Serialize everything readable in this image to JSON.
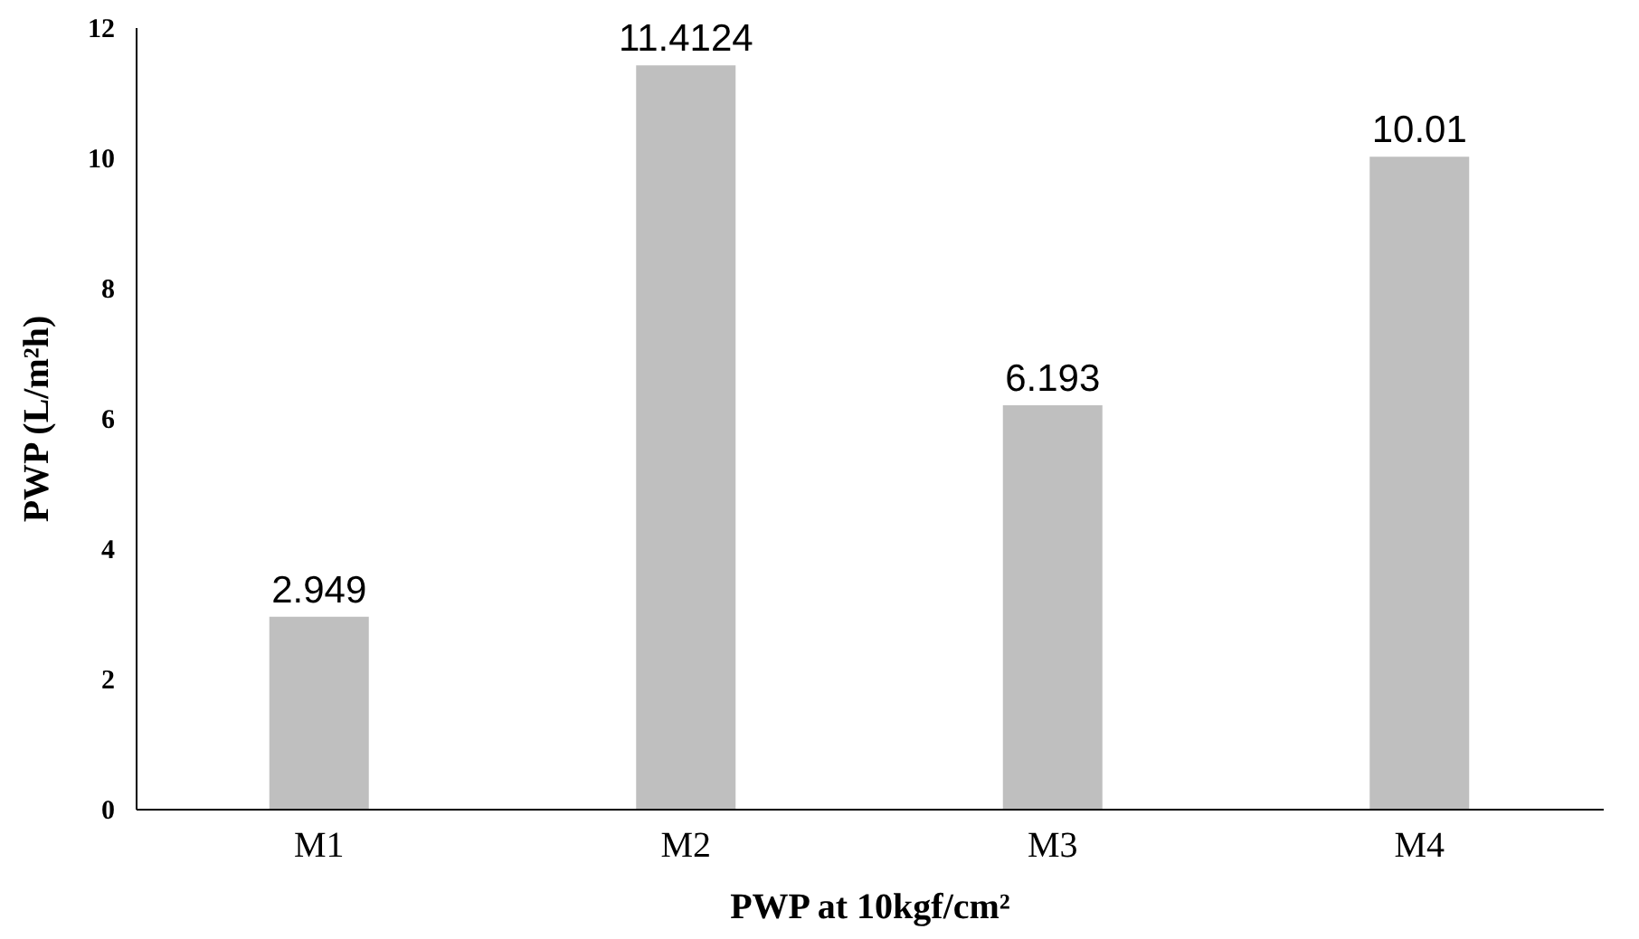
{
  "chart_data": {
    "type": "bar",
    "xlabel": "PWP at 10kgf/cm²",
    "ylabel": "PWP (L/m²h)",
    "categories": [
      "M1",
      "M2",
      "M3",
      "M4"
    ],
    "values": [
      2.949,
      11.4124,
      6.193,
      10.01
    ],
    "color": "#bfbfbf",
    "ylim": [
      0,
      12
    ],
    "yticks": [
      0,
      2,
      4,
      6,
      8,
      10,
      12
    ],
    "grid": false,
    "data_labels": true
  }
}
